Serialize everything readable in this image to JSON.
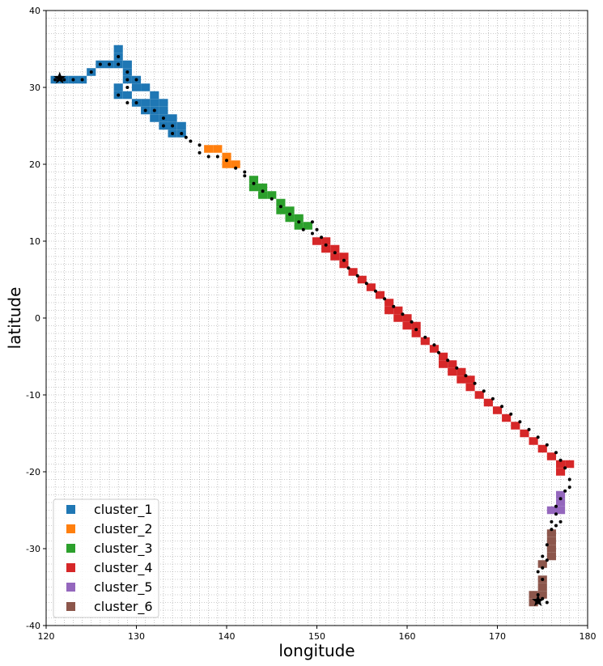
{
  "chart_data": {
    "type": "scatter",
    "title": "",
    "xlabel": "longitude",
    "ylabel": "latitude",
    "xlim": [
      120,
      180
    ],
    "ylim": [
      -40,
      40
    ],
    "xticks": [
      "120",
      "130",
      "140",
      "150",
      "160",
      "170",
      "180"
    ],
    "yticks": [
      "40",
      "30",
      "20",
      "10",
      "0",
      "-10",
      "-20",
      "-30",
      "-40"
    ],
    "grid": "dotted grid, 1 degree spacing",
    "legend_position": "lower-left",
    "cell_size_deg": 1,
    "series": [
      {
        "name": "cluster_1",
        "color": "#1f77b4",
        "cells": [
          [
            121,
            31
          ],
          [
            122,
            31
          ],
          [
            123,
            31
          ],
          [
            124,
            31
          ],
          [
            125,
            32
          ],
          [
            126,
            33
          ],
          [
            127,
            33
          ],
          [
            128,
            35
          ],
          [
            128,
            34
          ],
          [
            128,
            33
          ],
          [
            129,
            33
          ],
          [
            129,
            32
          ],
          [
            129,
            31
          ],
          [
            130,
            31
          ],
          [
            128,
            30
          ],
          [
            128,
            29
          ],
          [
            129,
            29
          ],
          [
            130,
            30
          ],
          [
            131,
            30
          ],
          [
            132,
            29
          ],
          [
            130,
            28
          ],
          [
            131,
            28
          ],
          [
            132,
            28
          ],
          [
            133,
            28
          ],
          [
            131,
            27
          ],
          [
            132,
            27
          ],
          [
            133,
            27
          ],
          [
            132,
            26
          ],
          [
            133,
            26
          ],
          [
            134,
            26
          ],
          [
            133,
            25
          ],
          [
            134,
            25
          ],
          [
            135,
            25
          ],
          [
            134,
            24
          ],
          [
            135,
            24
          ]
        ]
      },
      {
        "name": "cluster_2",
        "color": "#ff7f0e",
        "cells": [
          [
            138,
            22
          ],
          [
            139,
            22
          ],
          [
            140,
            21
          ],
          [
            140,
            20
          ],
          [
            141,
            20
          ]
        ]
      },
      {
        "name": "cluster_3",
        "color": "#2ca02c",
        "cells": [
          [
            143,
            18
          ],
          [
            143,
            17
          ],
          [
            144,
            17
          ],
          [
            144,
            16
          ],
          [
            145,
            16
          ],
          [
            146,
            15
          ],
          [
            146,
            14
          ],
          [
            147,
            14
          ],
          [
            147,
            13
          ],
          [
            148,
            13
          ],
          [
            148,
            12
          ],
          [
            149,
            12
          ]
        ]
      },
      {
        "name": "cluster_4",
        "color": "#d62728",
        "cells": [
          [
            150,
            10
          ],
          [
            151,
            10
          ],
          [
            151,
            9
          ],
          [
            152,
            9
          ],
          [
            152,
            8
          ],
          [
            153,
            8
          ],
          [
            153,
            7
          ],
          [
            154,
            6
          ],
          [
            155,
            5
          ],
          [
            156,
            4
          ],
          [
            157,
            3
          ],
          [
            158,
            2
          ],
          [
            158,
            1
          ],
          [
            159,
            1
          ],
          [
            159,
            0
          ],
          [
            160,
            0
          ],
          [
            160,
            -1
          ],
          [
            161,
            -1
          ],
          [
            161,
            -2
          ],
          [
            162,
            -3
          ],
          [
            163,
            -4
          ],
          [
            164,
            -5
          ],
          [
            164,
            -6
          ],
          [
            165,
            -6
          ],
          [
            165,
            -7
          ],
          [
            166,
            -7
          ],
          [
            166,
            -8
          ],
          [
            167,
            -8
          ],
          [
            167,
            -9
          ],
          [
            168,
            -10
          ],
          [
            169,
            -11
          ],
          [
            170,
            -12
          ],
          [
            171,
            -13
          ],
          [
            172,
            -14
          ],
          [
            173,
            -15
          ],
          [
            174,
            -16
          ],
          [
            175,
            -17
          ],
          [
            176,
            -18
          ],
          [
            177,
            -19
          ],
          [
            178,
            -19
          ],
          [
            177,
            -20
          ]
        ]
      },
      {
        "name": "cluster_5",
        "color": "#9467bd",
        "cells": [
          [
            177,
            -23
          ],
          [
            177,
            -24
          ],
          [
            176,
            -25
          ],
          [
            177,
            -25
          ]
        ]
      },
      {
        "name": "cluster_6",
        "color": "#8c564b",
        "cells": [
          [
            176,
            -28
          ],
          [
            176,
            -29
          ],
          [
            176,
            -30
          ],
          [
            176,
            -31
          ],
          [
            175,
            -32
          ],
          [
            175,
            -34
          ],
          [
            175,
            -35
          ],
          [
            174,
            -36
          ],
          [
            175,
            -36
          ],
          [
            174,
            -37
          ]
        ]
      }
    ],
    "track_points": [
      [
        121,
        31
      ],
      [
        122,
        31
      ],
      [
        123,
        31
      ],
      [
        124,
        31
      ],
      [
        125,
        32
      ],
      [
        126,
        33
      ],
      [
        127,
        33
      ],
      [
        128,
        34
      ],
      [
        128,
        33
      ],
      [
        129,
        32
      ],
      [
        129,
        31
      ],
      [
        130,
        31
      ],
      [
        129,
        30
      ],
      [
        128,
        29
      ],
      [
        129,
        28
      ],
      [
        130,
        28
      ],
      [
        131,
        27
      ],
      [
        132,
        27
      ],
      [
        133,
        26
      ],
      [
        133,
        25
      ],
      [
        134,
        25
      ],
      [
        134,
        24
      ],
      [
        135,
        24
      ],
      [
        135.5,
        23.5
      ],
      [
        136,
        23
      ],
      [
        137,
        22.5
      ],
      [
        137,
        21.5
      ],
      [
        138,
        21
      ],
      [
        139,
        21
      ],
      [
        140,
        20.5
      ],
      [
        141,
        19.5
      ],
      [
        142,
        19
      ],
      [
        142,
        18.5
      ],
      [
        143,
        17.5
      ],
      [
        144,
        16.5
      ],
      [
        145,
        15.5
      ],
      [
        146,
        14.5
      ],
      [
        147,
        13.5
      ],
      [
        148,
        12.5
      ],
      [
        148.5,
        11.5
      ],
      [
        149.5,
        11
      ],
      [
        149.5,
        12.5
      ],
      [
        150,
        11.5
      ],
      [
        150.5,
        10.5
      ],
      [
        151,
        9.5
      ],
      [
        152,
        8.5
      ],
      [
        153,
        7.5
      ],
      [
        153.5,
        6.5
      ],
      [
        154.5,
        5.5
      ],
      [
        155.5,
        4.5
      ],
      [
        156.5,
        3.5
      ],
      [
        157.5,
        2.5
      ],
      [
        158.5,
        1.5
      ],
      [
        159.5,
        0.5
      ],
      [
        160.5,
        -0.5
      ],
      [
        161,
        -1.5
      ],
      [
        162,
        -2.5
      ],
      [
        163,
        -3.5
      ],
      [
        163.5,
        -4.5
      ],
      [
        164.5,
        -5.5
      ],
      [
        165.5,
        -6.5
      ],
      [
        166.5,
        -7.5
      ],
      [
        167.5,
        -8.5
      ],
      [
        168.5,
        -9.5
      ],
      [
        169.5,
        -10.5
      ],
      [
        170.5,
        -11.5
      ],
      [
        171.5,
        -12.5
      ],
      [
        172.5,
        -13.5
      ],
      [
        173.5,
        -14.5
      ],
      [
        174.5,
        -15.5
      ],
      [
        175.5,
        -16.5
      ],
      [
        176.5,
        -17.5
      ],
      [
        177,
        -18.5
      ],
      [
        177.5,
        -19.5
      ],
      [
        178,
        -21
      ],
      [
        178,
        -22
      ],
      [
        177.5,
        -22.5
      ],
      [
        177,
        -23.5
      ],
      [
        176.5,
        -24.5
      ],
      [
        176.5,
        -25.5
      ],
      [
        176,
        -26.5
      ],
      [
        177,
        -26.5
      ],
      [
        176,
        -27.5
      ],
      [
        176.5,
        -27
      ],
      [
        175.5,
        -29.5
      ],
      [
        175,
        -31
      ],
      [
        175.5,
        -31.5
      ],
      [
        175,
        -32.5
      ],
      [
        174.5,
        -33
      ],
      [
        175,
        -34
      ],
      [
        174.5,
        -36
      ],
      [
        175,
        -36.5
      ],
      [
        175.5,
        -37
      ],
      [
        174.5,
        -37
      ]
    ],
    "start_marker": [
      121.5,
      31.2
    ],
    "end_marker": [
      174.5,
      -36.8
    ]
  }
}
